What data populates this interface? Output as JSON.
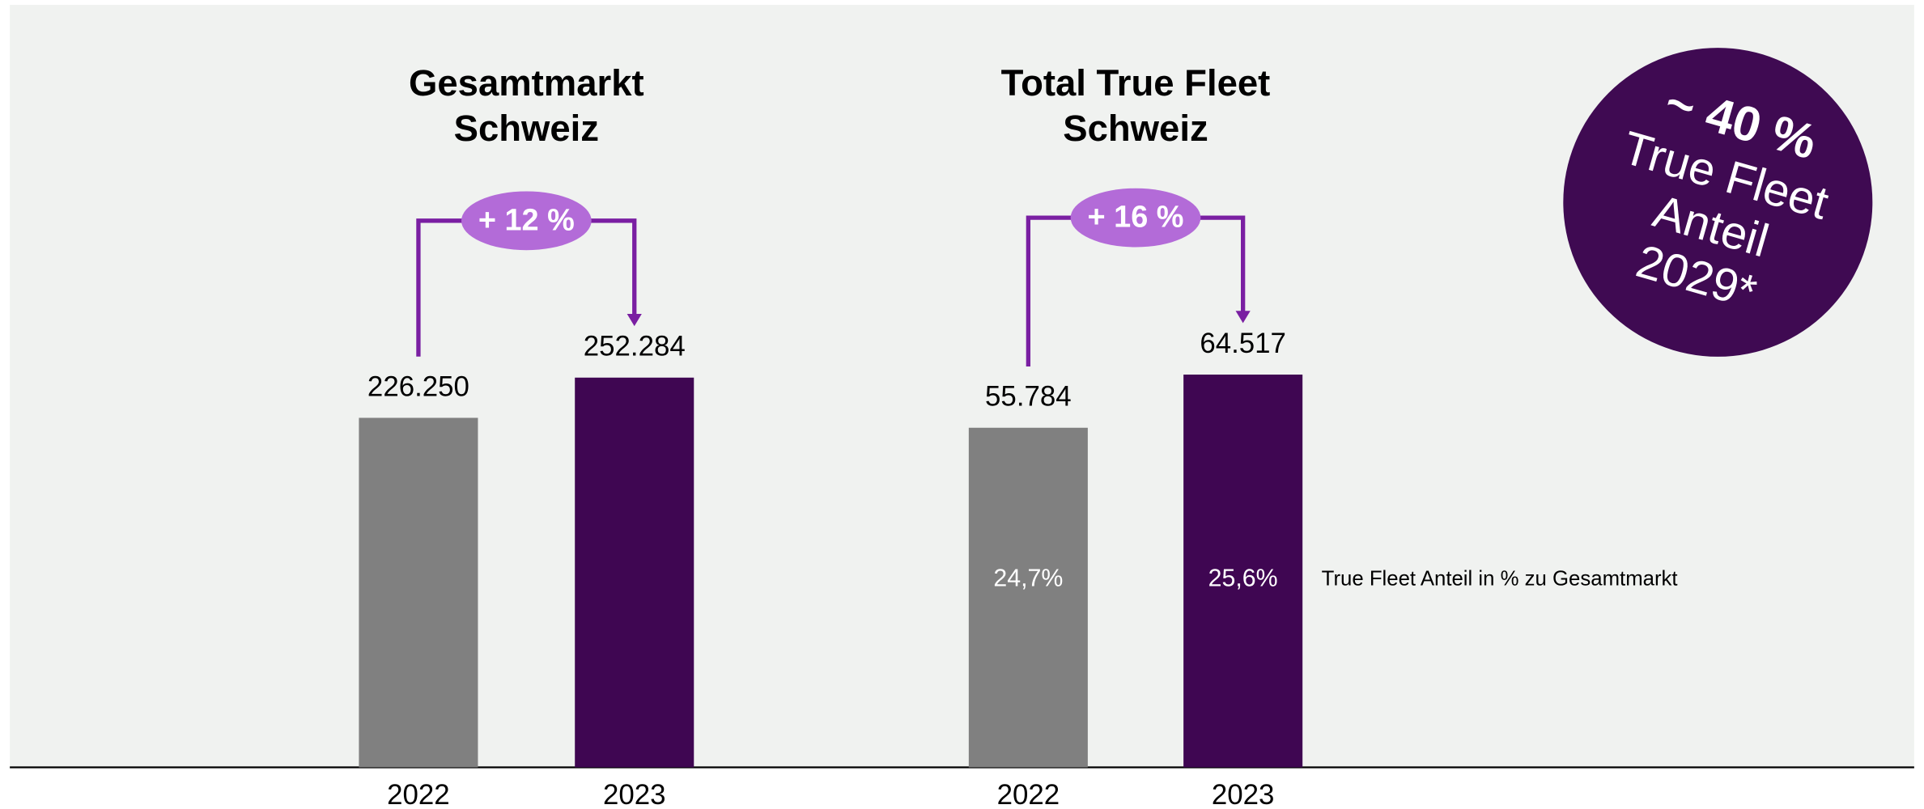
{
  "chart_data": [
    {
      "type": "bar",
      "title": [
        "Gesamtmarkt",
        "Schweiz"
      ],
      "categories": [
        "2022",
        "2023"
      ],
      "values": [
        226250,
        252284
      ],
      "value_labels": [
        "226.250",
        "252.284"
      ],
      "colors": [
        "#808080",
        "#3f0652"
      ],
      "ylim": [
        0,
        465000
      ],
      "change": 12,
      "change_label": "+ 12 %"
    },
    {
      "type": "bar",
      "title": [
        "Total True Fleet",
        "Schweiz"
      ],
      "categories": [
        "2022",
        "2023"
      ],
      "values": [
        55784,
        64517
      ],
      "value_labels": [
        "55.784",
        "64.517"
      ],
      "colors": [
        "#808080",
        "#3f0652"
      ],
      "ylim": [
        0,
        118000
      ],
      "change": 16,
      "change_label": "+ 16 %",
      "shares": [
        24.7,
        25.6
      ],
      "share_labels": [
        "24,7%",
        "25,6%"
      ],
      "note": "True Fleet Anteil in % zu Gesamtmarkt"
    }
  ],
  "badge": {
    "lines": [
      "~ 40 %",
      "True Fleet",
      "Anteil",
      "2029*"
    ]
  }
}
